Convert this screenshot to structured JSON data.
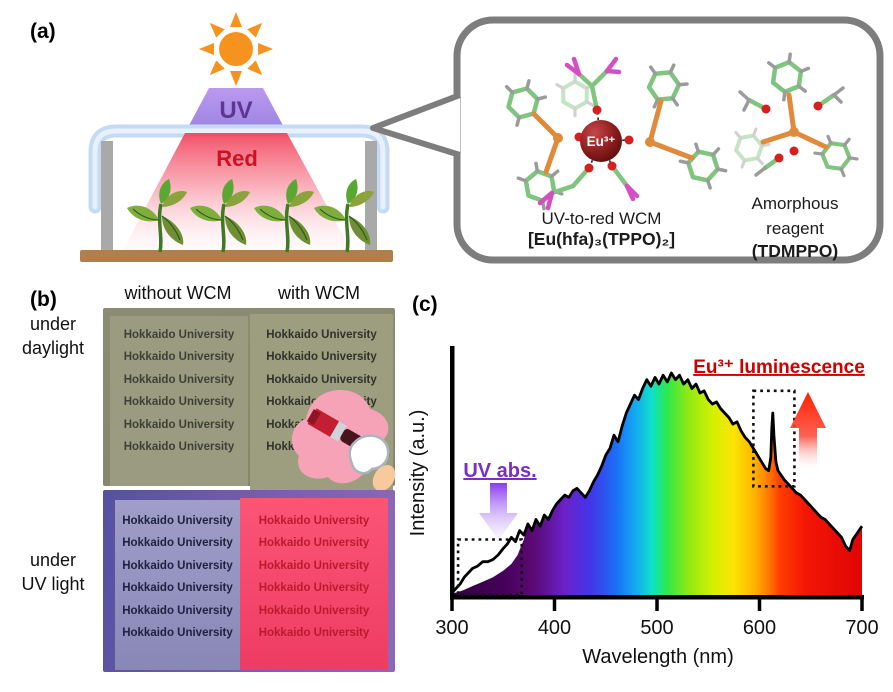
{
  "figure": {
    "panel_a_label": "(a)",
    "panel_b_label": "(b)",
    "panel_c_label": "(c)"
  },
  "panel_a": {
    "sun_icon": "sun-icon",
    "uv_beam_label": "UV",
    "red_beam_label": "Red",
    "eu_sphere_label": "Eu³⁺",
    "wcm_caption": "UV-to-red WCM",
    "wcm_formula": "[Eu(hfa)₃(TPPO)₂]",
    "reagent_caption": "Amorphous\nreagent",
    "reagent_name": "(TDMPPO)"
  },
  "panel_b": {
    "col_headers": [
      "without WCM",
      "with WCM"
    ],
    "row_label_daylight": "under\ndaylight",
    "row_label_uv": "under\nUV light",
    "daylight": {
      "left_rows": [
        "Hokkaido University",
        "Hokkaido University",
        "Hokkaido University",
        "Hokkaido University",
        "Hokkaido University",
        "Hokkaido University"
      ],
      "right_rows": [
        "Hokkaido University",
        "Hokkaido University",
        "Hokkaido University",
        "Hokkaido University",
        "Hokkaido University",
        "Hokkaido University"
      ]
    },
    "uv": {
      "left_rows": [
        "Hokkaido University",
        "Hokkaido University",
        "Hokkaido University",
        "Hokkaido University",
        "Hokkaido University",
        "Hokkaido University"
      ],
      "right_rows": [
        "Hokkaido University",
        "Hokkaido University",
        "Hokkaido University",
        "Hokkaido University",
        "Hokkaido University",
        "Hokkaido University"
      ]
    }
  },
  "colors": {
    "sun_orange": "#f6921e",
    "uv_beam_purple": "#ab8ae6",
    "uv_text_purple": "#5c3792",
    "red_beam": "#f2475f",
    "red_text": "#cc1324",
    "greenhouse_blue": "#c5daf3",
    "ground_brown": "#b27e49",
    "bubble_border": "#7d7d7d",
    "eu_sphere_red": "#7a1212",
    "daylight_photo_olive": "#8b8c72",
    "uv_photo_purple": "#7a5fae",
    "uv_film_pink": "#f84f72",
    "annotation_purple": "#7b2fbe",
    "annotation_red": "#cc0000"
  },
  "chart_data": {
    "type": "area",
    "title": "",
    "xlabel": "Wavelength (nm)",
    "ylabel": "Intensity (a.u.)",
    "xlim": [
      300,
      700
    ],
    "x_ticks": [
      300,
      400,
      500,
      600,
      700
    ],
    "y_axis_note": "arbitrary units, no tick labels",
    "grid": false,
    "legend": "none",
    "series": [
      {
        "name": "transmitted sunlight spectrum (black line)",
        "points": [
          [
            300,
            1
          ],
          [
            304,
            3
          ],
          [
            308,
            5
          ],
          [
            312,
            8
          ],
          [
            316,
            10
          ],
          [
            320,
            12
          ],
          [
            325,
            13
          ],
          [
            330,
            15
          ],
          [
            335,
            15
          ],
          [
            340,
            16
          ],
          [
            345,
            18
          ],
          [
            350,
            21
          ],
          [
            354,
            23
          ],
          [
            358,
            26
          ],
          [
            362,
            24
          ],
          [
            366,
            29
          ],
          [
            370,
            27
          ],
          [
            374,
            32
          ],
          [
            378,
            29
          ],
          [
            382,
            34
          ],
          [
            386,
            31
          ],
          [
            390,
            36
          ],
          [
            394,
            34
          ],
          [
            398,
            38
          ],
          [
            402,
            41
          ],
          [
            406,
            43
          ],
          [
            410,
            45
          ],
          [
            414,
            44
          ],
          [
            418,
            47
          ],
          [
            422,
            48
          ],
          [
            426,
            46
          ],
          [
            430,
            44
          ],
          [
            434,
            47
          ],
          [
            438,
            51
          ],
          [
            442,
            54
          ],
          [
            446,
            58
          ],
          [
            450,
            63
          ],
          [
            454,
            66
          ],
          [
            458,
            72
          ],
          [
            462,
            69
          ],
          [
            466,
            76
          ],
          [
            470,
            82
          ],
          [
            474,
            86
          ],
          [
            478,
            90
          ],
          [
            482,
            88
          ],
          [
            486,
            93
          ],
          [
            490,
            97
          ],
          [
            494,
            94
          ],
          [
            498,
            98
          ],
          [
            502,
            95
          ],
          [
            506,
            99
          ],
          [
            510,
            96
          ],
          [
            514,
            100
          ],
          [
            518,
            97
          ],
          [
            522,
            99
          ],
          [
            526,
            95
          ],
          [
            530,
            97
          ],
          [
            534,
            93
          ],
          [
            538,
            95
          ],
          [
            542,
            91
          ],
          [
            546,
            92
          ],
          [
            550,
            88
          ],
          [
            554,
            86
          ],
          [
            558,
            87
          ],
          [
            562,
            84
          ],
          [
            566,
            82
          ],
          [
            570,
            80
          ],
          [
            574,
            77
          ],
          [
            578,
            78
          ],
          [
            582,
            74
          ],
          [
            586,
            71
          ],
          [
            590,
            69
          ],
          [
            594,
            66
          ],
          [
            598,
            63
          ],
          [
            602,
            60
          ],
          [
            606,
            57
          ],
          [
            609,
            56
          ],
          [
            611,
            62
          ],
          [
            612,
            75
          ],
          [
            613,
            82
          ],
          [
            614,
            72
          ],
          [
            616,
            60
          ],
          [
            618,
            56
          ],
          [
            621,
            54
          ],
          [
            624,
            52
          ],
          [
            628,
            50
          ],
          [
            632,
            48
          ],
          [
            636,
            46
          ],
          [
            640,
            45
          ],
          [
            644,
            43
          ],
          [
            648,
            41
          ],
          [
            652,
            39
          ],
          [
            656,
            37
          ],
          [
            660,
            35
          ],
          [
            664,
            34
          ],
          [
            668,
            32
          ],
          [
            672,
            30
          ],
          [
            676,
            28
          ],
          [
            680,
            26
          ],
          [
            684,
            22
          ],
          [
            688,
            20
          ],
          [
            691,
            25
          ],
          [
            694,
            27
          ],
          [
            697,
            29
          ],
          [
            700,
            31
          ]
        ]
      },
      {
        "name": "rainbow filled area (UV-absorbed region lower than line)",
        "points": [
          [
            300,
            0.5
          ],
          [
            310,
            2
          ],
          [
            320,
            4
          ],
          [
            330,
            6
          ],
          [
            340,
            8
          ],
          [
            350,
            11
          ],
          [
            358,
            14
          ],
          [
            364,
            18
          ],
          [
            370,
            25
          ]
        ],
        "joins_line_at_nm": 374
      }
    ],
    "annotations": [
      {
        "label": "UV abs.",
        "color": "#7b2fbe",
        "box_nm": [
          306,
          368
        ],
        "box_intensity_pct": [
          0,
          25
        ],
        "arrow": "down"
      },
      {
        "label": "Eu³⁺ luminescence",
        "color": "#cc0000",
        "box_nm": [
          594,
          634
        ],
        "box_intensity_pct": [
          49,
          92
        ],
        "arrow": "up",
        "peak_nm": 613
      }
    ]
  }
}
